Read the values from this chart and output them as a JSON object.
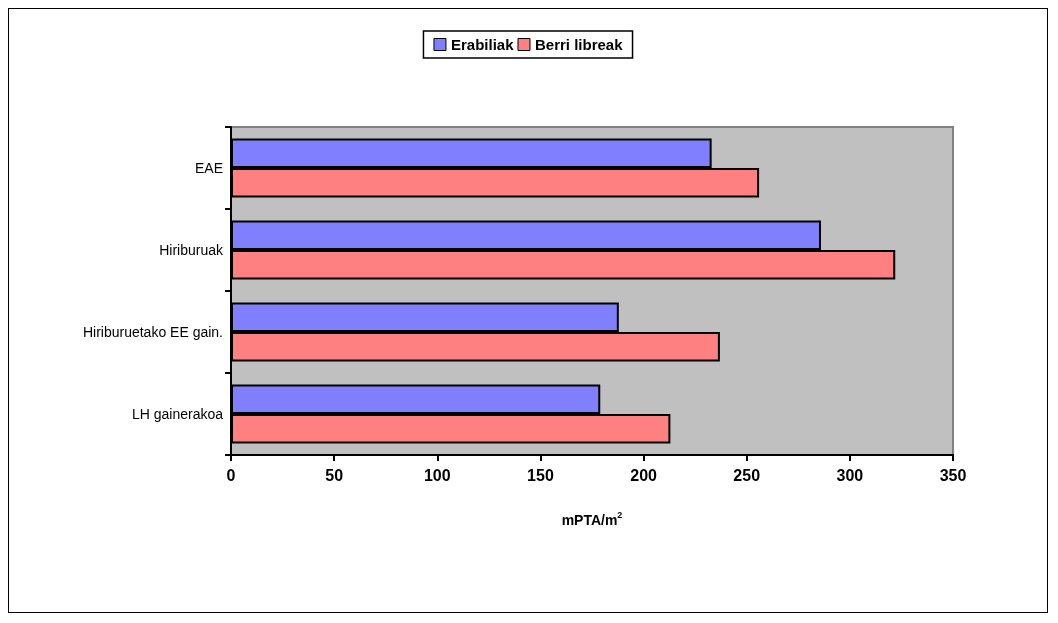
{
  "chart_data": {
    "type": "bar",
    "orientation": "horizontal",
    "xlabel": "mPTA/m$^{2}$",
    "categories": [
      "EAE",
      "Hiriburuak",
      "Hiriburuetako EE gain.",
      "LH gainerakoa"
    ],
    "series": [
      {
        "name": "Erabiliak",
        "color": "#8080ff",
        "values": [
          233,
          286,
          188,
          179
        ]
      },
      {
        "name": "Berri libreak",
        "color": "#ff8080",
        "values": [
          256,
          322,
          237,
          213
        ]
      }
    ],
    "xlim": [
      0,
      350
    ],
    "xticks": [
      0,
      50,
      100,
      150,
      200,
      250,
      300,
      350
    ],
    "grid": false,
    "legend": "top"
  }
}
